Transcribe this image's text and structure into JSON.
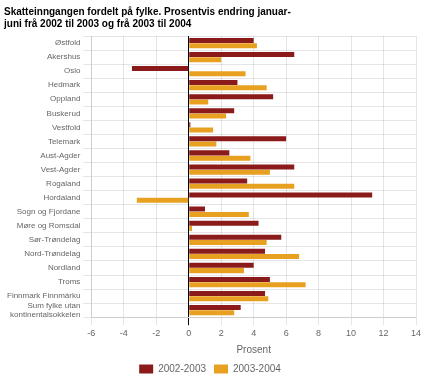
{
  "chart_data": {
    "type": "bar",
    "orientation": "horizontal",
    "title": "Skatteinngangen fordelt på fylke. Prosentvis endring januar-\njuni frå 2002 til 2003 og frå 2003 til 2004",
    "categories": [
      "Østfold",
      "Akershus",
      "Oslo",
      "Hedmark",
      "Oppland",
      "Buskerud",
      "Vestfold",
      "Telemark",
      "Aust-Agder",
      "Vest-Agder",
      "Rogaland",
      "Hordaland",
      "Sogn og Fjordane",
      "Møre og Romsdal",
      "Sør-Trøndelag",
      "Nord-Trøndelag",
      "Nordland",
      "Troms",
      "Finnmark Finnmárku",
      "Sum fylke utan\nkontinentalsokkelen"
    ],
    "series": [
      {
        "name": "2002-2003",
        "color": "#8B1A1A",
        "values": [
          4.0,
          6.5,
          -3.5,
          3.0,
          5.2,
          2.8,
          0.1,
          6.0,
          2.5,
          6.5,
          3.6,
          11.3,
          1.0,
          4.3,
          5.7,
          4.7,
          4.0,
          5.0,
          4.7,
          3.2
        ]
      },
      {
        "name": "2003-2004",
        "color": "#E8A020",
        "values": [
          4.2,
          2.0,
          3.5,
          4.8,
          1.2,
          2.3,
          1.5,
          1.7,
          3.8,
          5.0,
          6.5,
          -3.2,
          3.7,
          0.2,
          4.8,
          6.8,
          3.4,
          7.2,
          4.9,
          2.8
        ]
      }
    ],
    "xlabel": "Prosent",
    "xlim": [
      -6,
      14
    ],
    "xticks": [
      -6,
      -4,
      -2,
      0,
      2,
      4,
      6,
      8,
      10,
      12,
      14
    ],
    "grid": true,
    "legend": "bottom"
  }
}
